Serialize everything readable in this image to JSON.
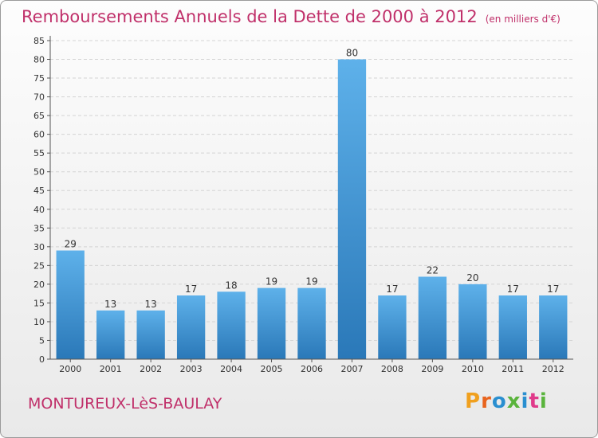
{
  "title": {
    "main": "Remboursements Annuels de la Dette de 2000 à 2012",
    "unit": "(en milliers d'€)"
  },
  "town": "MONTUREUX-LèS-BAULAY",
  "logo": {
    "text": "Proxiti",
    "letter_colors": [
      "#f0a01e",
      "#e8641e",
      "#2a8fd0",
      "#5ab43c",
      "#2a8fd0",
      "#e03a8a",
      "#5ab43c"
    ]
  },
  "colors": {
    "title": "#c0306a",
    "bar_top": "#5eb1ea",
    "bar_bottom": "#2a78b8",
    "grid": "#d4d4d4",
    "axis": "#555555"
  },
  "chart_data": {
    "type": "bar",
    "categories": [
      "2000",
      "2001",
      "2002",
      "2003",
      "2004",
      "2005",
      "2006",
      "2007",
      "2008",
      "2009",
      "2010",
      "2011",
      "2012"
    ],
    "values": [
      29,
      13,
      13,
      17,
      18,
      19,
      19,
      80,
      17,
      22,
      20,
      17,
      17
    ],
    "ylim": [
      0,
      85
    ],
    "yticks": [
      0,
      5,
      10,
      15,
      20,
      25,
      30,
      35,
      40,
      45,
      50,
      55,
      60,
      65,
      70,
      75,
      80,
      85
    ],
    "grid": true,
    "xlabel": "",
    "ylabel": ""
  }
}
